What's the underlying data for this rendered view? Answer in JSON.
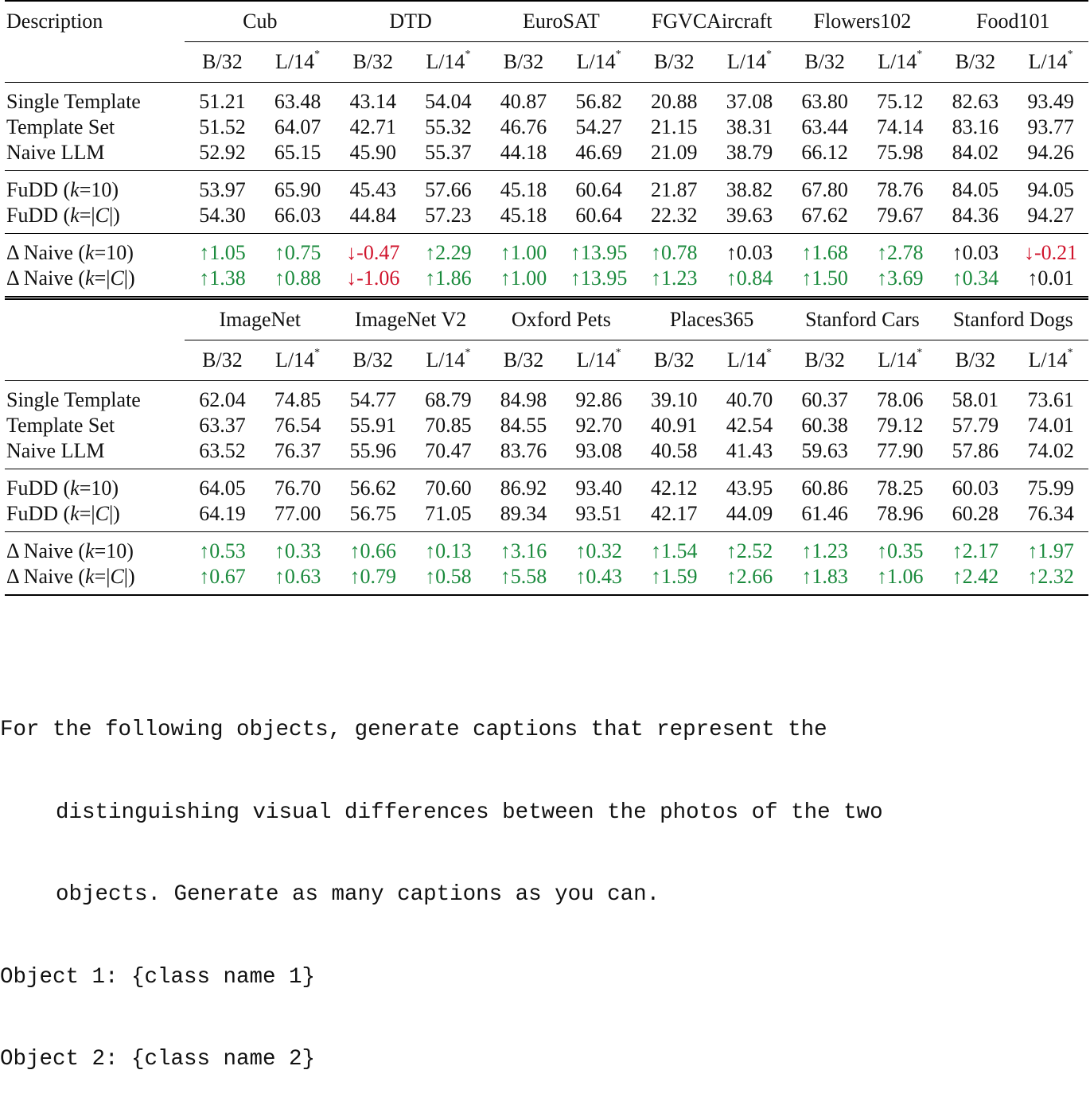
{
  "table": {
    "description_header": "Description",
    "model_small": "B/32",
    "model_large": "L/14",
    "model_large_mark": "*",
    "sections": [
      {
        "datasets": [
          "Cub",
          "DTD",
          "EuroSAT",
          "FGVCAircraft",
          "Flowers102",
          "Food101"
        ],
        "groups": [
          {
            "rows": [
              {
                "label": "Single Template",
                "values": [
                  "51.21",
                  "63.48",
                  "43.14",
                  "54.04",
                  "40.87",
                  "56.82",
                  "20.88",
                  "37.08",
                  "63.80",
                  "75.12",
                  "82.63",
                  "93.49"
                ]
              },
              {
                "label": "Template Set",
                "values": [
                  "51.52",
                  "64.07",
                  "42.71",
                  "55.32",
                  "46.76",
                  "54.27",
                  "21.15",
                  "38.31",
                  "63.44",
                  "74.14",
                  "83.16",
                  "93.77"
                ]
              },
              {
                "label": "Naive LLM",
                "values": [
                  "52.92",
                  "65.15",
                  "45.90",
                  "55.37",
                  "44.18",
                  "46.69",
                  "21.09",
                  "38.79",
                  "66.12",
                  "75.98",
                  "84.02",
                  "94.26"
                ]
              }
            ]
          },
          {
            "rows": [
              {
                "label_pre": "FuDD (",
                "label_math": "k",
                "label_post": "=10)",
                "values": [
                  "53.97",
                  "65.90",
                  "45.43",
                  "57.66",
                  "45.18",
                  "60.64",
                  "21.87",
                  "38.82",
                  "67.80",
                  "78.76",
                  "84.05",
                  "94.05"
                ]
              },
              {
                "label_pre": "FuDD (",
                "label_math": "k",
                "label_post": "=|C|)",
                "values": [
                  "54.30",
                  "66.03",
                  "44.84",
                  "57.23",
                  "45.18",
                  "60.64",
                  "22.32",
                  "39.63",
                  "67.62",
                  "79.67",
                  "84.36",
                  "94.27"
                ]
              }
            ]
          },
          {
            "delta": true,
            "rows": [
              {
                "label_pre": "Δ Naive (",
                "label_math": "k",
                "label_post": "=10)",
                "values": [
                  "↑1.05",
                  "↑0.75",
                  "↓-0.47",
                  "↑2.29",
                  "↑1.00",
                  "↑13.95",
                  "↑0.78",
                  "↑0.03",
                  "↑1.68",
                  "↑2.78",
                  "↑0.03",
                  "↓-0.21"
                ],
                "colors": [
                  "up",
                  "up",
                  "down",
                  "up",
                  "up",
                  "up",
                  "up",
                  "neutral",
                  "up",
                  "up",
                  "neutral",
                  "down"
                ]
              },
              {
                "label_pre": "Δ Naive (",
                "label_math": "k",
                "label_post": "=|C|)",
                "values": [
                  "↑1.38",
                  "↑0.88",
                  "↓-1.06",
                  "↑1.86",
                  "↑1.00",
                  "↑13.95",
                  "↑1.23",
                  "↑0.84",
                  "↑1.50",
                  "↑3.69",
                  "↑0.34",
                  "↑0.01"
                ],
                "colors": [
                  "up",
                  "up",
                  "down",
                  "up",
                  "up",
                  "up",
                  "up",
                  "up",
                  "up",
                  "up",
                  "up",
                  "neutral"
                ]
              }
            ]
          }
        ]
      },
      {
        "datasets": [
          "ImageNet",
          "ImageNet V2",
          "Oxford Pets",
          "Places365",
          "Stanford Cars",
          "Stanford Dogs"
        ],
        "groups": [
          {
            "rows": [
              {
                "label": "Single Template",
                "values": [
                  "62.04",
                  "74.85",
                  "54.77",
                  "68.79",
                  "84.98",
                  "92.86",
                  "39.10",
                  "40.70",
                  "60.37",
                  "78.06",
                  "58.01",
                  "73.61"
                ]
              },
              {
                "label": "Template Set",
                "values": [
                  "63.37",
                  "76.54",
                  "55.91",
                  "70.85",
                  "84.55",
                  "92.70",
                  "40.91",
                  "42.54",
                  "60.38",
                  "79.12",
                  "57.79",
                  "74.01"
                ]
              },
              {
                "label": "Naive LLM",
                "values": [
                  "63.52",
                  "76.37",
                  "55.96",
                  "70.47",
                  "83.76",
                  "93.08",
                  "40.58",
                  "41.43",
                  "59.63",
                  "77.90",
                  "57.86",
                  "74.02"
                ]
              }
            ]
          },
          {
            "rows": [
              {
                "label_pre": "FuDD (",
                "label_math": "k",
                "label_post": "=10)",
                "values": [
                  "64.05",
                  "76.70",
                  "56.62",
                  "70.60",
                  "86.92",
                  "93.40",
                  "42.12",
                  "43.95",
                  "60.86",
                  "78.25",
                  "60.03",
                  "75.99"
                ]
              },
              {
                "label_pre": "FuDD (",
                "label_math": "k",
                "label_post": "=|C|)",
                "values": [
                  "64.19",
                  "77.00",
                  "56.75",
                  "71.05",
                  "89.34",
                  "93.51",
                  "42.17",
                  "44.09",
                  "61.46",
                  "78.96",
                  "60.28",
                  "76.34"
                ]
              }
            ]
          },
          {
            "delta": true,
            "rows": [
              {
                "label_pre": "Δ Naive (",
                "label_math": "k",
                "label_post": "=10)",
                "values": [
                  "↑0.53",
                  "↑0.33",
                  "↑0.66",
                  "↑0.13",
                  "↑3.16",
                  "↑0.32",
                  "↑1.54",
                  "↑2.52",
                  "↑1.23",
                  "↑0.35",
                  "↑2.17",
                  "↑1.97"
                ],
                "colors": [
                  "up",
                  "up",
                  "up",
                  "up",
                  "up",
                  "up",
                  "up",
                  "up",
                  "up",
                  "up",
                  "up",
                  "up"
                ]
              },
              {
                "label_pre": "Δ Naive (",
                "label_math": "k",
                "label_post": "=|C|)",
                "values": [
                  "↑0.67",
                  "↑0.63",
                  "↑0.79",
                  "↑0.58",
                  "↑5.58",
                  "↑0.43",
                  "↑1.59",
                  "↑2.66",
                  "↑1.83",
                  "↑1.06",
                  "↑2.42",
                  "↑2.32"
                ],
                "colors": [
                  "up",
                  "up",
                  "up",
                  "up",
                  "up",
                  "up",
                  "up",
                  "up",
                  "up",
                  "up",
                  "up",
                  "up"
                ]
              }
            ]
          }
        ]
      }
    ]
  },
  "prompt": {
    "line1": "For the following objects, generate captions that represent the",
    "line2": "distinguishing visual differences between the photos of the two",
    "line3": "objects. Generate as many captions as you can.",
    "line4": "Object 1: {class name 1}",
    "line5": "Object 2: {class name 2}"
  },
  "colors": {
    "positive": "#1a8a3c",
    "negative": "#d0142c",
    "text": "#111111"
  }
}
